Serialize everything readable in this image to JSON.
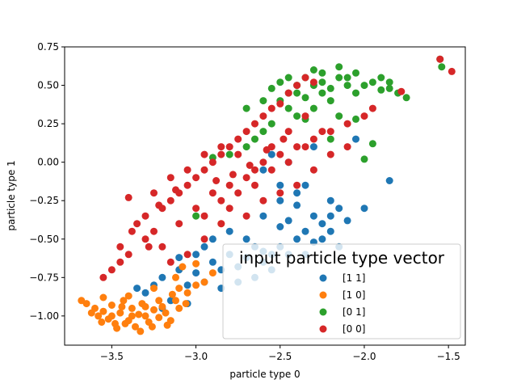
{
  "chart_data": {
    "type": "scatter",
    "title": "",
    "xlabel": "particle type 0",
    "ylabel": "particle type 1",
    "xlim": [
      -3.78,
      -1.4
    ],
    "ylim": [
      -1.19,
      0.75
    ],
    "x_ticks": [
      -3.5,
      -3.0,
      -2.5,
      -2.0,
      -1.5
    ],
    "x_tick_labels": [
      "−3.5",
      "−3.0",
      "−2.5",
      "−2.0",
      "−1.5"
    ],
    "y_ticks": [
      0.75,
      0.5,
      0.25,
      0.0,
      -0.25,
      -0.5,
      -0.75,
      -1.0
    ],
    "y_tick_labels": [
      "0.75",
      "0.50",
      "0.25",
      "0.00",
      "−0.25",
      "−0.50",
      "−0.75",
      "−1.00"
    ],
    "grid": false,
    "legend": {
      "title": "input particle type vector",
      "placement": "lower-right",
      "entries": [
        "[1 1]",
        "[1 0]",
        "[0 1]",
        "[0 0]"
      ]
    },
    "series": [
      {
        "name": "[1 1]",
        "color": "#1f77b4",
        "points": [
          [
            -3.3,
            -0.85
          ],
          [
            -3.25,
            -0.8
          ],
          [
            -3.2,
            -0.75
          ],
          [
            -3.15,
            -0.9
          ],
          [
            -3.1,
            -0.7
          ],
          [
            -3.05,
            -0.8
          ],
          [
            -3.0,
            -0.72
          ],
          [
            -2.95,
            -0.78
          ],
          [
            -2.9,
            -0.65
          ],
          [
            -2.85,
            -0.7
          ],
          [
            -2.8,
            -0.6
          ],
          [
            -2.75,
            -0.68
          ],
          [
            -2.7,
            -0.62
          ],
          [
            -2.65,
            -0.55
          ],
          [
            -2.6,
            -0.58
          ],
          [
            -2.55,
            -0.6
          ],
          [
            -2.5,
            -0.55
          ],
          [
            -2.45,
            -0.6
          ],
          [
            -2.4,
            -0.5
          ],
          [
            -2.35,
            -0.45
          ],
          [
            -2.3,
            -0.52
          ],
          [
            -2.25,
            -0.4
          ],
          [
            -2.2,
            -0.35
          ],
          [
            -2.15,
            -0.3
          ],
          [
            -2.1,
            -0.38
          ],
          [
            -2.4,
            -0.2
          ],
          [
            -2.5,
            -0.15
          ],
          [
            -2.6,
            -0.05
          ],
          [
            -2.55,
            0.05
          ],
          [
            -2.45,
            0.0
          ],
          [
            -2.2,
            -0.25
          ],
          [
            -2.0,
            -0.3
          ],
          [
            -1.85,
            -0.12
          ],
          [
            -2.05,
            0.15
          ],
          [
            -2.3,
            0.1
          ],
          [
            -3.2,
            -0.95
          ],
          [
            -3.1,
            -0.62
          ],
          [
            -2.95,
            -0.55
          ],
          [
            -2.75,
            -0.78
          ],
          [
            -2.65,
            -0.75
          ],
          [
            -2.55,
            -0.7
          ],
          [
            -2.35,
            -0.6
          ],
          [
            -2.25,
            -0.5
          ],
          [
            -2.45,
            -0.38
          ],
          [
            -2.6,
            -0.35
          ],
          [
            -2.8,
            -0.45
          ],
          [
            -2.9,
            -0.5
          ],
          [
            -3.0,
            -0.6
          ],
          [
            -2.7,
            -0.5
          ],
          [
            -2.5,
            -0.42
          ],
          [
            -2.15,
            -0.55
          ],
          [
            -2.3,
            -0.35
          ],
          [
            -2.4,
            -0.28
          ],
          [
            -2.35,
            -0.15
          ],
          [
            -2.5,
            -0.25
          ],
          [
            -3.35,
            -0.82
          ],
          [
            -3.05,
            -0.92
          ],
          [
            -2.85,
            -0.82
          ],
          [
            -2.6,
            -0.65
          ],
          [
            -2.2,
            -0.45
          ]
        ]
      },
      {
        "name": "[1 0]",
        "color": "#ff7f0e",
        "points": [
          [
            -3.65,
            -0.92
          ],
          [
            -3.6,
            -0.95
          ],
          [
            -3.58,
            -1.0
          ],
          [
            -3.55,
            -0.97
          ],
          [
            -3.52,
            -1.02
          ],
          [
            -3.5,
            -0.93
          ],
          [
            -3.48,
            -1.05
          ],
          [
            -3.45,
            -0.98
          ],
          [
            -3.43,
            -0.9
          ],
          [
            -3.4,
            -1.03
          ],
          [
            -3.38,
            -0.95
          ],
          [
            -3.36,
            -1.07
          ],
          [
            -3.34,
            -0.99
          ],
          [
            -3.32,
            -0.92
          ],
          [
            -3.3,
            -1.0
          ],
          [
            -3.28,
            -1.04
          ],
          [
            -3.25,
            -0.96
          ],
          [
            -3.22,
            -1.01
          ],
          [
            -3.2,
            -0.94
          ],
          [
            -3.18,
            -0.98
          ],
          [
            -3.15,
            -1.03
          ],
          [
            -3.12,
            -0.9
          ],
          [
            -3.1,
            -0.95
          ],
          [
            -3.05,
            -0.85
          ],
          [
            -3.0,
            -0.8
          ],
          [
            -2.95,
            -0.78
          ],
          [
            -2.9,
            -0.72
          ],
          [
            -3.08,
            -0.68
          ],
          [
            -3.12,
            -0.75
          ],
          [
            -3.25,
            -0.82
          ],
          [
            -3.47,
            -1.08
          ],
          [
            -3.42,
            -1.05
          ],
          [
            -3.33,
            -1.1
          ],
          [
            -3.55,
            -0.88
          ],
          [
            -3.62,
            -0.98
          ],
          [
            -3.68,
            -0.9
          ],
          [
            -3.5,
            -1.0
          ],
          [
            -3.44,
            -0.94
          ],
          [
            -3.38,
            -1.0
          ],
          [
            -3.3,
            -0.94
          ],
          [
            -3.26,
            -1.07
          ],
          [
            -3.22,
            -0.9
          ],
          [
            -3.17,
            -1.06
          ],
          [
            -3.14,
            -0.86
          ],
          [
            -3.06,
            -0.92
          ],
          [
            -2.85,
            -0.4
          ],
          [
            -3.0,
            -0.66
          ],
          [
            -3.1,
            -0.82
          ],
          [
            -3.4,
            -0.87
          ],
          [
            -3.56,
            -1.04
          ]
        ]
      },
      {
        "name": "[0 1]",
        "color": "#2ca02c",
        "points": [
          [
            -2.5,
            0.4
          ],
          [
            -2.45,
            0.45
          ],
          [
            -2.4,
            0.5
          ],
          [
            -2.35,
            0.55
          ],
          [
            -2.3,
            0.6
          ],
          [
            -2.25,
            0.52
          ],
          [
            -2.2,
            0.48
          ],
          [
            -2.15,
            0.55
          ],
          [
            -2.1,
            0.5
          ],
          [
            -2.05,
            0.45
          ],
          [
            -2.0,
            0.5
          ],
          [
            -1.95,
            0.52
          ],
          [
            -1.9,
            0.47
          ],
          [
            -1.85,
            0.48
          ],
          [
            -1.8,
            0.45
          ],
          [
            -1.75,
            0.42
          ],
          [
            -2.3,
            0.35
          ],
          [
            -2.4,
            0.3
          ],
          [
            -2.55,
            0.25
          ],
          [
            -2.6,
            0.2
          ],
          [
            -2.65,
            0.15
          ],
          [
            -2.7,
            0.1
          ],
          [
            -2.8,
            0.05
          ],
          [
            -2.9,
            0.03
          ],
          [
            -2.15,
            0.3
          ],
          [
            -2.05,
            0.28
          ],
          [
            -2.2,
            0.4
          ],
          [
            -2.35,
            0.42
          ],
          [
            -2.45,
            0.35
          ],
          [
            -2.55,
            0.48
          ],
          [
            -1.55,
            0.67
          ],
          [
            -1.54,
            0.62
          ],
          [
            -1.95,
            0.12
          ],
          [
            -2.2,
            0.15
          ],
          [
            -2.0,
            0.02
          ],
          [
            -2.3,
            0.5
          ],
          [
            -2.25,
            0.58
          ],
          [
            -2.15,
            0.62
          ],
          [
            -2.1,
            0.55
          ],
          [
            -2.4,
            0.45
          ],
          [
            -2.5,
            0.52
          ],
          [
            -2.6,
            0.4
          ],
          [
            -2.35,
            0.28
          ],
          [
            -1.9,
            0.55
          ],
          [
            -2.05,
            0.58
          ],
          [
            -3.0,
            -0.35
          ],
          [
            -2.7,
            0.35
          ],
          [
            -2.45,
            0.55
          ],
          [
            -2.25,
            0.45
          ],
          [
            -1.85,
            0.52
          ]
        ]
      },
      {
        "name": "[0 0]",
        "color": "#d62728",
        "points": [
          [
            -3.2,
            -0.3
          ],
          [
            -3.15,
            -0.25
          ],
          [
            -3.1,
            -0.2
          ],
          [
            -3.05,
            -0.15
          ],
          [
            -3.0,
            -0.1
          ],
          [
            -2.95,
            -0.05
          ],
          [
            -2.9,
            0.0
          ],
          [
            -2.85,
            0.05
          ],
          [
            -2.8,
            0.1
          ],
          [
            -2.75,
            0.15
          ],
          [
            -2.7,
            0.2
          ],
          [
            -2.65,
            0.25
          ],
          [
            -2.6,
            0.3
          ],
          [
            -2.55,
            0.35
          ],
          [
            -2.5,
            0.38
          ],
          [
            -2.45,
            0.45
          ],
          [
            -2.4,
            0.5
          ],
          [
            -2.35,
            0.55
          ],
          [
            -2.3,
            0.52
          ],
          [
            -3.35,
            -0.4
          ],
          [
            -3.3,
            -0.5
          ],
          [
            -3.25,
            -0.45
          ],
          [
            -3.4,
            -0.6
          ],
          [
            -3.45,
            -0.65
          ],
          [
            -3.5,
            -0.7
          ],
          [
            -3.55,
            -0.75
          ],
          [
            -3.0,
            -0.3
          ],
          [
            -2.9,
            -0.2
          ],
          [
            -2.8,
            -0.15
          ],
          [
            -2.7,
            -0.1
          ],
          [
            -2.6,
            0.0
          ],
          [
            -2.5,
            0.05
          ],
          [
            -2.4,
            0.1
          ],
          [
            -2.3,
            0.15
          ],
          [
            -2.2,
            0.2
          ],
          [
            -2.1,
            0.25
          ],
          [
            -2.0,
            0.3
          ],
          [
            -1.95,
            0.35
          ],
          [
            -3.1,
            -0.4
          ],
          [
            -3.2,
            -0.55
          ],
          [
            -2.95,
            -0.35
          ],
          [
            -2.85,
            -0.25
          ],
          [
            -2.75,
            -0.2
          ],
          [
            -2.65,
            -0.15
          ],
          [
            -2.55,
            -0.05
          ],
          [
            -2.45,
            0.0
          ],
          [
            -2.35,
            0.1
          ],
          [
            -2.25,
            0.2
          ],
          [
            -1.48,
            0.59
          ],
          [
            -1.55,
            0.67
          ],
          [
            -1.78,
            0.46
          ],
          [
            -3.4,
            -0.23
          ],
          [
            -3.28,
            -0.55
          ],
          [
            -3.15,
            -0.65
          ],
          [
            -3.05,
            -0.6
          ],
          [
            -2.95,
            -0.5
          ],
          [
            -2.85,
            -0.4
          ],
          [
            -2.8,
            -0.3
          ],
          [
            -2.7,
            -0.35
          ],
          [
            -2.6,
            -0.25
          ],
          [
            -2.5,
            -0.2
          ],
          [
            -2.4,
            -0.15
          ],
          [
            -2.3,
            -0.05
          ],
          [
            -2.2,
            0.05
          ],
          [
            -2.1,
            0.1
          ],
          [
            -3.25,
            -0.2
          ],
          [
            -3.15,
            -0.1
          ],
          [
            -3.05,
            -0.05
          ],
          [
            -2.95,
            0.05
          ],
          [
            -2.85,
            0.1
          ],
          [
            -2.75,
            0.05
          ],
          [
            -2.65,
            -0.05
          ],
          [
            -2.55,
            0.1
          ],
          [
            -2.45,
            0.2
          ],
          [
            -2.35,
            0.3
          ],
          [
            -2.88,
            -0.12
          ],
          [
            -2.78,
            -0.08
          ],
          [
            -2.68,
            -0.02
          ],
          [
            -2.58,
            0.08
          ],
          [
            -2.48,
            0.15
          ],
          [
            -3.45,
            -0.55
          ],
          [
            -3.38,
            -0.45
          ],
          [
            -3.3,
            -0.35
          ],
          [
            -3.22,
            -0.28
          ],
          [
            -3.12,
            -0.18
          ]
        ]
      }
    ]
  }
}
